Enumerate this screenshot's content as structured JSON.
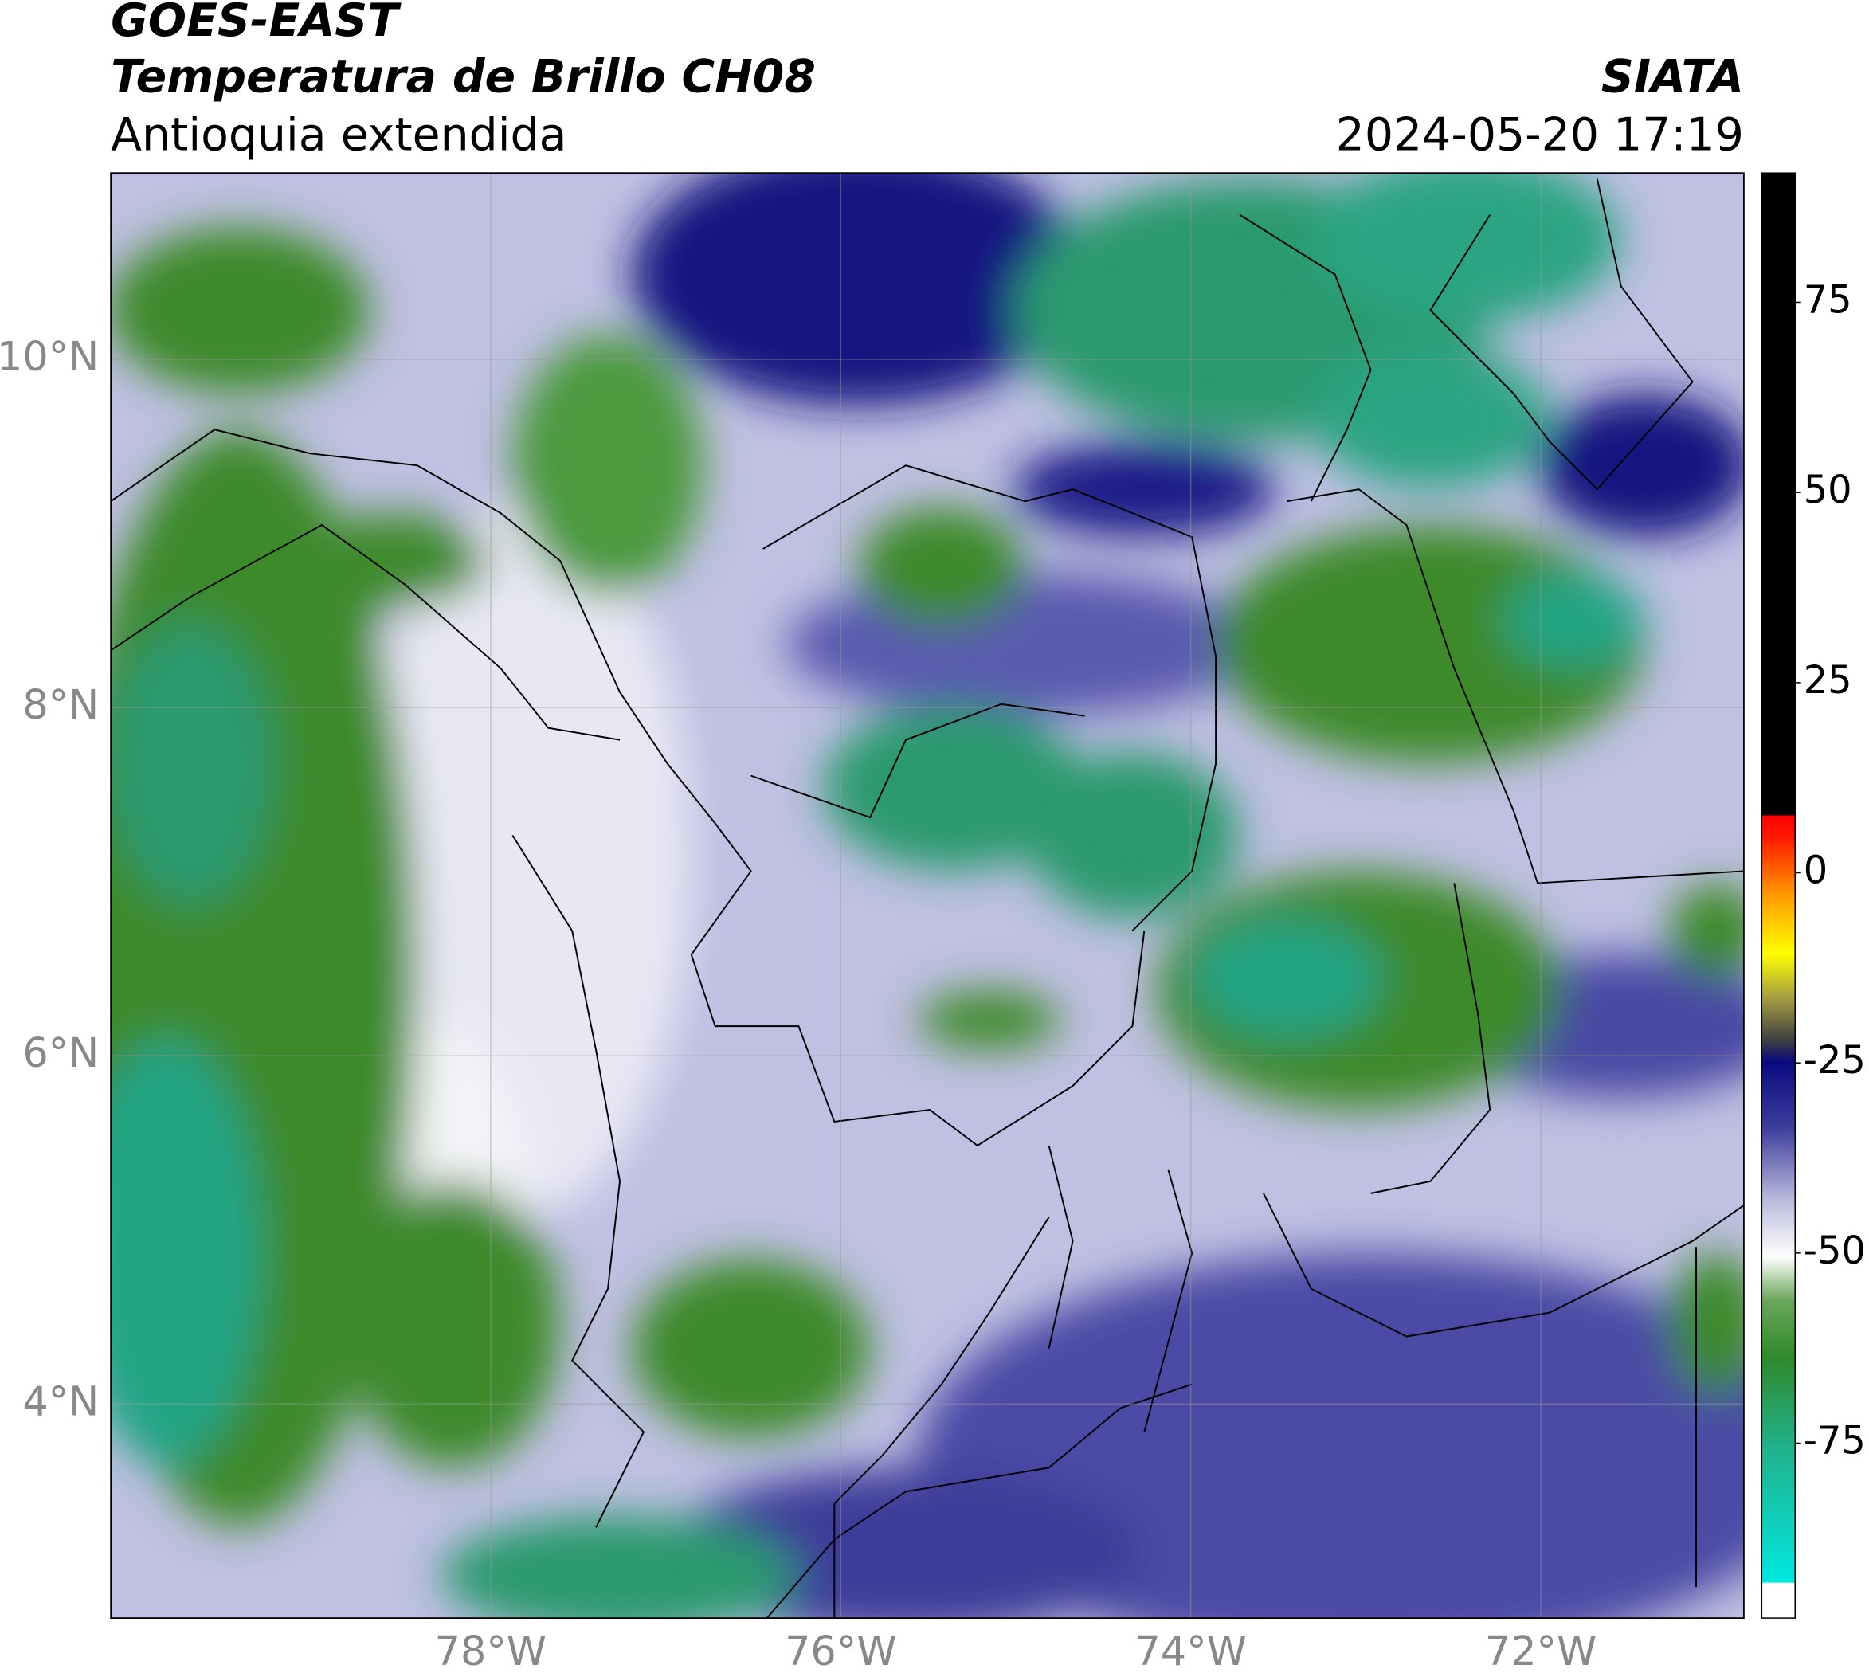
{
  "header": {
    "title": "GOES-EAST",
    "subtitle": "Temperatura de Brillo CH08",
    "region": "Antioquia extendida",
    "source": "SIATA",
    "timestamp": "2024-05-20 17:19"
  },
  "map": {
    "xlim": [
      -80.17,
      -70.84
    ],
    "ylim": [
      2.77,
      11.07
    ],
    "xticks": [
      {
        "value": -78,
        "label": "78°W"
      },
      {
        "value": -76,
        "label": "76°W"
      },
      {
        "value": -74,
        "label": "74°W"
      },
      {
        "value": -72,
        "label": "72°W"
      }
    ],
    "yticks": [
      {
        "value": 10,
        "label": "10°N"
      },
      {
        "value": 8,
        "label": "8°N"
      },
      {
        "value": 6,
        "label": "6°N"
      },
      {
        "value": 4,
        "label": "4°N"
      }
    ],
    "grid": true
  },
  "colorbar": {
    "lim": [
      -98,
      92
    ],
    "ticks": [
      75,
      50,
      25,
      0,
      -25,
      -50,
      -75
    ]
  }
}
